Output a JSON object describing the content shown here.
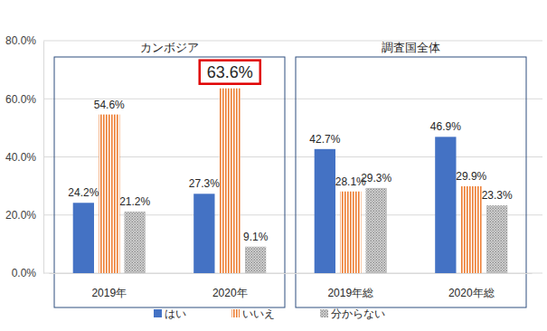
{
  "chart_data": {
    "type": "bar",
    "categories": [
      "2019年",
      "2020年",
      "2019年総",
      "2020年総"
    ],
    "groups": [
      {
        "label": "カンボジア",
        "categories": [
          "2019年",
          "2020年"
        ]
      },
      {
        "label": "調査国全体",
        "categories": [
          "2019年総",
          "2020年総"
        ]
      }
    ],
    "series": [
      {
        "name": "はい",
        "color": "#4472c4",
        "values": [
          24.2,
          27.3,
          42.7,
          46.9
        ],
        "value_labels": [
          "24.2%",
          "27.3%",
          "42.7%",
          "46.9%"
        ]
      },
      {
        "name": "いいえ",
        "color": "#ed7d31",
        "values": [
          54.6,
          63.6,
          28.1,
          29.9
        ],
        "value_labels": [
          "54.6%",
          "63.6%",
          "28.1%",
          "29.9%"
        ]
      },
      {
        "name": "分からない",
        "color": "#a5a5a5",
        "values": [
          21.2,
          9.1,
          29.3,
          23.3
        ],
        "value_labels": [
          "21.2%",
          "9.1%",
          "29.3%",
          "23.3%"
        ]
      }
    ],
    "highlight": {
      "series": "いいえ",
      "category": "2020年"
    },
    "ylim": [
      0,
      80
    ],
    "yticks": [
      {
        "value": 0,
        "label": "0.0%"
      },
      {
        "value": 20,
        "label": "20.0%"
      },
      {
        "value": 40,
        "label": "40.0%"
      },
      {
        "value": 60,
        "label": "60.0%"
      },
      {
        "value": 80,
        "label": "80.0%"
      }
    ],
    "grid": true,
    "data_labels": true,
    "legend": "bottom"
  }
}
